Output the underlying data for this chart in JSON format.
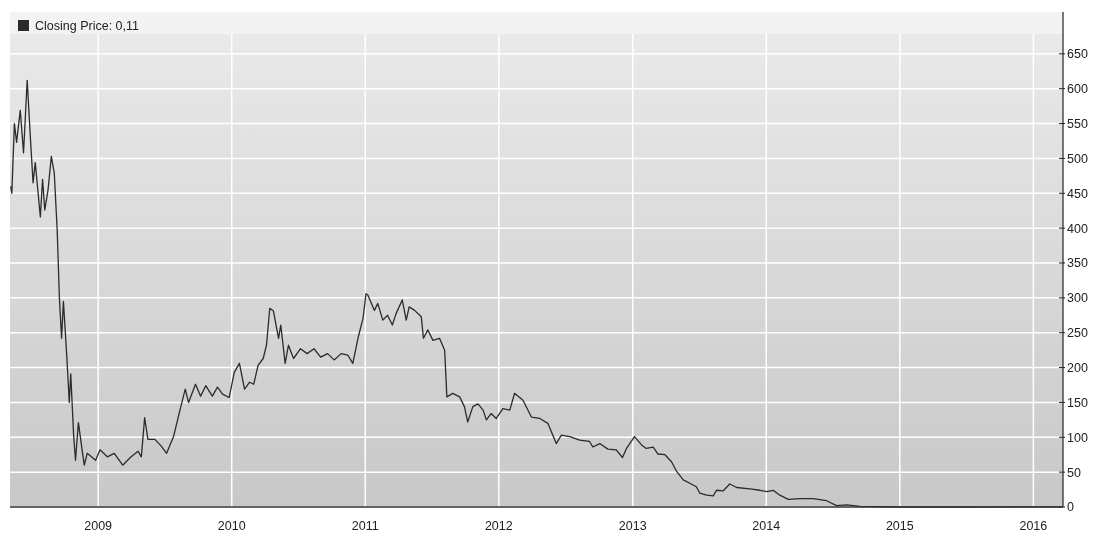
{
  "chart_data": {
    "type": "line",
    "legend": "top left",
    "grid": true,
    "xlim": [
      "2008-05-05",
      "2016-03-22"
    ],
    "xticks": [
      "2009",
      "2010",
      "2011",
      "2012",
      "2013",
      "2014",
      "2015",
      "2016"
    ],
    "ylim": [
      0,
      710
    ],
    "yticks": [
      0,
      50,
      100,
      150,
      200,
      250,
      300,
      350,
      400,
      450,
      500,
      550,
      600,
      650
    ],
    "series": [
      {
        "name": "Closing Price: 0,11",
        "color": "#2b2b2b",
        "x": [
          "2008-05-07",
          "2008-05-10",
          "2008-05-17",
          "2008-05-23",
          "2008-06-02",
          "2008-06-11",
          "2008-06-21",
          "2008-06-30",
          "2008-07-07",
          "2008-07-13",
          "2008-07-27",
          "2008-08-02",
          "2008-08-08",
          "2008-08-17",
          "2008-08-26",
          "2008-09-03",
          "2008-09-11",
          "2008-09-17",
          "2008-09-23",
          "2008-09-28",
          "2008-10-07",
          "2008-10-14",
          "2008-10-18",
          "2008-10-26",
          "2008-10-31",
          "2008-11-08",
          "2008-11-18",
          "2008-11-24",
          "2008-12-02",
          "2008-12-25",
          "2009-01-06",
          "2009-01-26",
          "2009-02-14",
          "2009-03-09",
          "2009-04-01",
          "2009-04-20",
          "2009-04-29",
          "2009-05-08",
          "2009-05-17",
          "2009-06-05",
          "2009-06-23",
          "2009-07-07",
          "2009-07-26",
          "2009-08-13",
          "2009-08-27",
          "2009-09-05",
          "2009-09-24",
          "2009-10-08",
          "2009-10-22",
          "2009-11-09",
          "2009-11-23",
          "2009-12-07",
          "2009-12-25",
          "2010-01-08",
          "2010-01-22",
          "2010-02-05",
          "2010-02-19",
          "2010-03-02",
          "2010-03-14",
          "2010-03-28",
          "2010-04-06",
          "2010-04-15",
          "2010-04-25",
          "2010-05-09",
          "2010-05-15",
          "2010-05-27",
          "2010-06-05",
          "2010-06-19",
          "2010-07-08",
          "2010-07-26",
          "2010-08-14",
          "2010-09-01",
          "2010-09-20",
          "2010-10-08",
          "2010-10-27",
          "2010-11-14",
          "2010-11-28",
          "2010-12-12",
          "2010-12-26",
          "2011-01-03",
          "2011-01-08",
          "2011-01-26",
          "2011-02-04",
          "2011-02-18",
          "2011-03-03",
          "2011-03-16",
          "2011-03-26",
          "2011-04-12",
          "2011-04-23",
          "2011-05-01",
          "2011-05-16",
          "2011-06-03",
          "2011-06-09",
          "2011-06-21",
          "2011-07-05",
          "2011-07-23",
          "2011-08-06",
          "2011-08-12",
          "2011-08-28",
          "2011-09-16",
          "2011-09-29",
          "2011-10-08",
          "2011-10-22",
          "2011-11-05",
          "2011-11-19",
          "2011-11-28",
          "2011-12-11",
          "2011-12-25",
          "2012-01-12",
          "2012-01-31",
          "2012-02-13",
          "2012-03-07",
          "2012-03-30",
          "2012-04-22",
          "2012-05-14",
          "2012-06-06",
          "2012-06-20",
          "2012-07-13",
          "2012-08-09",
          "2012-09-05",
          "2012-09-14",
          "2012-10-03",
          "2012-10-25",
          "2012-11-17",
          "2012-12-04",
          "2012-12-15",
          "2013-01-06",
          "2013-01-25",
          "2013-02-07",
          "2013-02-26",
          "2013-03-11",
          "2013-03-30",
          "2013-04-17",
          "2013-05-01",
          "2013-05-19",
          "2013-06-06",
          "2013-06-24",
          "2013-07-03",
          "2013-07-22",
          "2013-08-09",
          "2013-08-18",
          "2013-09-05",
          "2013-09-23",
          "2013-10-12",
          "2013-11-17",
          "2013-12-15",
          "2014-01-02",
          "2014-01-20",
          "2014-02-07",
          "2014-03-02",
          "2014-04-03",
          "2014-05-09",
          "2014-06-15",
          "2014-07-12",
          "2014-08-09",
          "2014-09-14",
          "2015-01-01",
          "2015-07-01",
          "2016-03-14"
        ],
        "values": [
          460,
          450,
          550,
          523,
          569,
          508,
          612,
          527,
          465,
          494,
          416,
          470,
          426,
          455,
          503,
          479,
          397,
          300,
          242,
          295,
          218,
          150,
          191,
          102,
          67,
          121,
          82,
          60,
          77,
          67,
          82,
          72,
          77,
          60,
          72,
          80,
          72,
          128,
          97,
          97,
          87,
          77,
          101,
          140,
          169,
          150,
          176,
          159,
          174,
          159,
          172,
          162,
          157,
          193,
          206,
          169,
          179,
          176,
          203,
          213,
          232,
          285,
          281,
          242,
          261,
          206,
          232,
          213,
          227,
          220,
          227,
          215,
          220,
          211,
          220,
          218,
          206,
          242,
          271,
          306,
          304,
          282,
          292,
          268,
          275,
          261,
          277,
          297,
          268,
          287,
          282,
          273,
          242,
          254,
          239,
          242,
          225,
          158,
          163,
          158,
          144,
          122,
          144,
          148,
          139,
          125,
          134,
          127,
          141,
          139,
          163,
          153,
          129,
          127,
          120,
          91,
          103,
          101,
          96,
          94,
          86,
          91,
          83,
          82,
          71,
          84,
          101,
          89,
          84,
          86,
          76,
          75,
          65,
          51,
          39,
          34,
          29,
          20,
          17,
          16,
          24,
          23,
          33,
          28,
          26,
          24,
          22,
          24,
          17,
          11,
          12,
          12,
          9,
          2,
          3,
          1,
          0,
          0,
          0.11
        ]
      }
    ]
  }
}
